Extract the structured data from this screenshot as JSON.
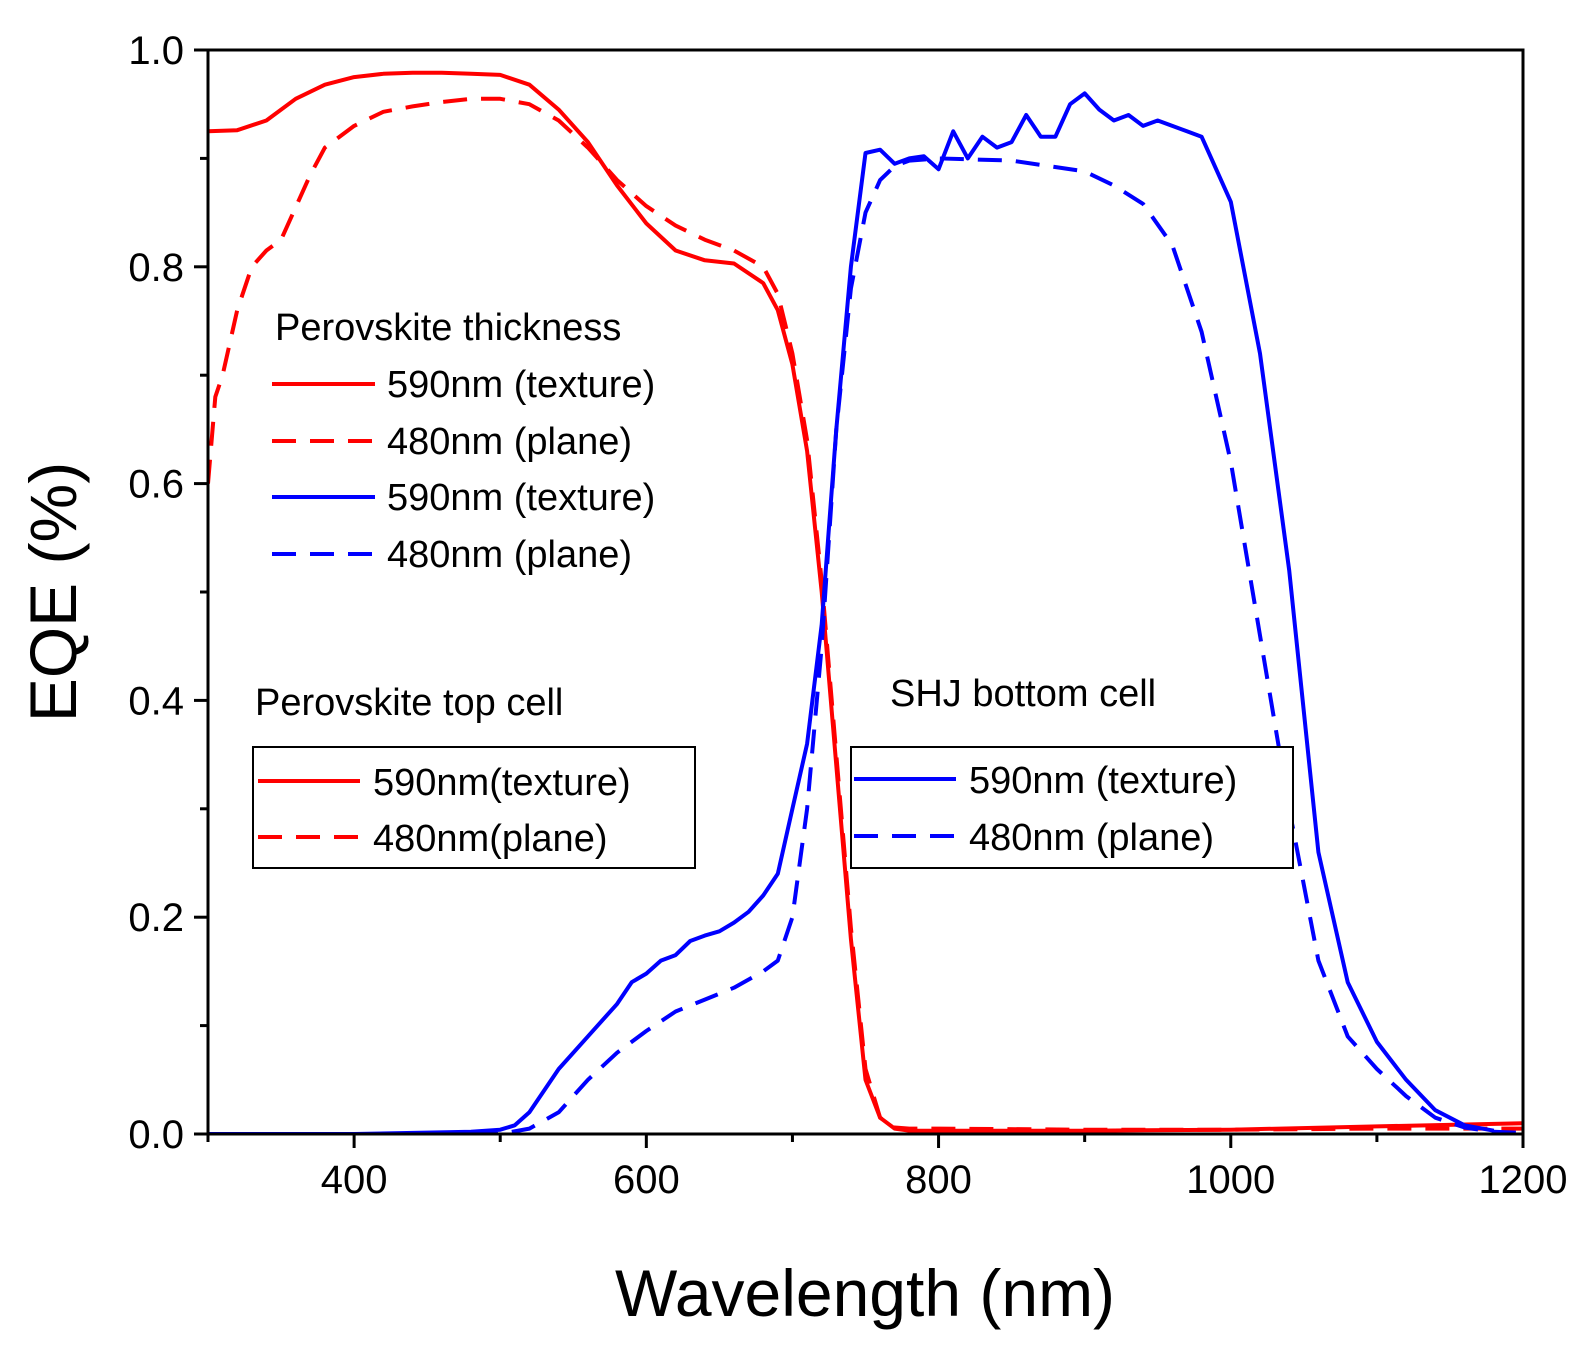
{
  "chart_data": {
    "type": "line",
    "xlabel": "Wavelength (nm)",
    "ylabel": "EQE (%)",
    "xlim": [
      300,
      1200
    ],
    "ylim": [
      0.0,
      1.0
    ],
    "x_ticks": [
      400,
      600,
      800,
      1000,
      1200
    ],
    "x_tick_labels": [
      "400",
      "600",
      "800",
      "1000",
      "1200"
    ],
    "y_ticks": [
      0.0,
      0.2,
      0.4,
      0.6,
      0.8,
      1.0
    ],
    "y_tick_labels": [
      "0.0",
      "0.2",
      "0.4",
      "0.6",
      "0.8",
      "1.0"
    ],
    "grid": false,
    "colors": {
      "red": "#ff0000",
      "blue": "#0000ff"
    },
    "series": [
      {
        "name": "Perovskite top cell 590nm(texture)",
        "color": "#ff0000",
        "style": "solid",
        "x": [
          300,
          320,
          340,
          360,
          380,
          400,
          420,
          440,
          460,
          480,
          500,
          520,
          540,
          560,
          580,
          600,
          620,
          640,
          660,
          680,
          690,
          700,
          710,
          720,
          730,
          740,
          750,
          760,
          770,
          780,
          800,
          900,
          1000,
          1100,
          1200
        ],
        "y": [
          0.925,
          0.926,
          0.935,
          0.955,
          0.968,
          0.975,
          0.978,
          0.979,
          0.979,
          0.978,
          0.977,
          0.968,
          0.945,
          0.915,
          0.875,
          0.84,
          0.815,
          0.806,
          0.803,
          0.785,
          0.76,
          0.71,
          0.63,
          0.5,
          0.34,
          0.18,
          0.05,
          0.015,
          0.005,
          0.003,
          0.003,
          0.003,
          0.004,
          0.007,
          0.01
        ]
      },
      {
        "name": "Perovskite top cell 480nm(plane)",
        "color": "#ff0000",
        "style": "dashed",
        "x": [
          300,
          305,
          310,
          320,
          330,
          340,
          350,
          360,
          370,
          380,
          400,
          420,
          440,
          460,
          480,
          500,
          520,
          540,
          560,
          580,
          600,
          620,
          640,
          660,
          680,
          690,
          700,
          710,
          720,
          730,
          740,
          750,
          760,
          770,
          780,
          800,
          900,
          1000,
          1100,
          1200
        ],
        "y": [
          0.6,
          0.68,
          0.7,
          0.76,
          0.8,
          0.815,
          0.825,
          0.855,
          0.885,
          0.91,
          0.93,
          0.943,
          0.948,
          0.952,
          0.955,
          0.955,
          0.95,
          0.935,
          0.91,
          0.88,
          0.856,
          0.838,
          0.825,
          0.815,
          0.8,
          0.775,
          0.72,
          0.64,
          0.51,
          0.35,
          0.19,
          0.06,
          0.015,
          0.006,
          0.005,
          0.005,
          0.004,
          0.004,
          0.005,
          0.005
        ]
      },
      {
        "name": "SHJ bottom cell 590nm (texture)",
        "color": "#0000ff",
        "style": "solid",
        "x": [
          300,
          400,
          480,
          500,
          510,
          520,
          540,
          560,
          580,
          590,
          600,
          610,
          620,
          630,
          640,
          650,
          660,
          670,
          680,
          690,
          700,
          710,
          720,
          730,
          740,
          750,
          760,
          770,
          780,
          790,
          800,
          810,
          820,
          830,
          840,
          850,
          860,
          870,
          880,
          890,
          900,
          910,
          920,
          930,
          940,
          950,
          960,
          970,
          980,
          1000,
          1020,
          1040,
          1060,
          1080,
          1100,
          1120,
          1140,
          1160,
          1180
        ],
        "y": [
          0.0,
          0.0,
          0.002,
          0.004,
          0.008,
          0.02,
          0.06,
          0.09,
          0.12,
          0.14,
          0.148,
          0.16,
          0.165,
          0.178,
          0.183,
          0.187,
          0.195,
          0.205,
          0.22,
          0.24,
          0.3,
          0.36,
          0.47,
          0.65,
          0.8,
          0.905,
          0.908,
          0.895,
          0.9,
          0.902,
          0.89,
          0.925,
          0.9,
          0.92,
          0.91,
          0.915,
          0.94,
          0.92,
          0.92,
          0.95,
          0.96,
          0.945,
          0.935,
          0.94,
          0.93,
          0.935,
          0.93,
          0.925,
          0.92,
          0.86,
          0.72,
          0.52,
          0.26,
          0.14,
          0.085,
          0.05,
          0.022,
          0.008,
          0.003
        ]
      },
      {
        "name": "SHJ bottom cell 480nm (plane)",
        "color": "#0000ff",
        "style": "dashed",
        "x": [
          300,
          400,
          500,
          520,
          540,
          560,
          580,
          600,
          620,
          640,
          660,
          680,
          690,
          700,
          710,
          720,
          730,
          740,
          750,
          760,
          770,
          780,
          800,
          850,
          900,
          920,
          940,
          960,
          980,
          1000,
          1020,
          1040,
          1060,
          1080,
          1100,
          1120,
          1140,
          1160,
          1180,
          1200
        ],
        "y": [
          0.0,
          0.0,
          0.0,
          0.005,
          0.02,
          0.05,
          0.075,
          0.095,
          0.113,
          0.124,
          0.135,
          0.15,
          0.16,
          0.2,
          0.3,
          0.45,
          0.65,
          0.78,
          0.85,
          0.88,
          0.893,
          0.898,
          0.9,
          0.898,
          0.888,
          0.875,
          0.858,
          0.82,
          0.74,
          0.62,
          0.46,
          0.3,
          0.16,
          0.09,
          0.06,
          0.035,
          0.015,
          0.006,
          0.002,
          0.001
        ]
      }
    ],
    "legends": {
      "thickness": {
        "title": "Perovskite thickness",
        "entries": [
          {
            "label": "590nm (texture)",
            "color": "#ff0000",
            "style": "solid"
          },
          {
            "label": "480nm (plane)",
            "color": "#ff0000",
            "style": "dashed"
          },
          {
            "label": "590nm (texture)",
            "color": "#0000ff",
            "style": "solid"
          },
          {
            "label": "480nm (plane)",
            "color": "#0000ff",
            "style": "dashed"
          }
        ]
      },
      "top_cell": {
        "title": "Perovskite top cell",
        "entries": [
          {
            "label": "590nm(texture)",
            "color": "#ff0000",
            "style": "solid"
          },
          {
            "label": "480nm(plane)",
            "color": "#ff0000",
            "style": "dashed"
          }
        ]
      },
      "bottom_cell": {
        "title": "SHJ bottom cell",
        "entries": [
          {
            "label": "590nm (texture)",
            "color": "#0000ff",
            "style": "solid"
          },
          {
            "label": "480nm (plane)",
            "color": "#0000ff",
            "style": "dashed"
          }
        ]
      }
    }
  }
}
